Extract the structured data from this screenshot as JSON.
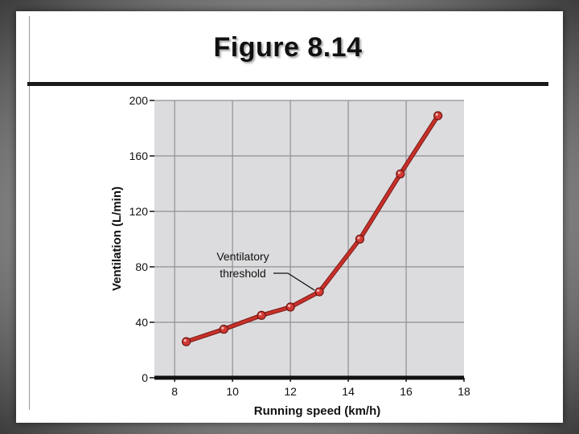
{
  "slide": {
    "title": "Figure 8.14"
  },
  "chart_data": {
    "type": "line",
    "title": "",
    "xlabel": "Running speed (km/h)",
    "ylabel": "Ventilation (L/min)",
    "xlim": [
      7.3,
      18
    ],
    "ylim": [
      0,
      200
    ],
    "xticks": [
      8,
      10,
      12,
      14,
      16,
      18
    ],
    "yticks": [
      0,
      40,
      80,
      120,
      160,
      200
    ],
    "grid": true,
    "series": [
      {
        "x": [
          8.4,
          9.7,
          11.0,
          12.0,
          13.0,
          14.4,
          15.8,
          17.1
        ],
        "y": [
          26,
          35,
          45,
          51,
          62,
          100,
          147,
          189
        ]
      }
    ],
    "annotation": {
      "lines": [
        "Ventilatory",
        "threshold"
      ],
      "x": 13.0,
      "y": 62
    },
    "colors": {
      "plot_bg": "#dcdcde",
      "grid": "#8f8f94",
      "line": "#c8302a",
      "marker": "#d23a33"
    }
  }
}
